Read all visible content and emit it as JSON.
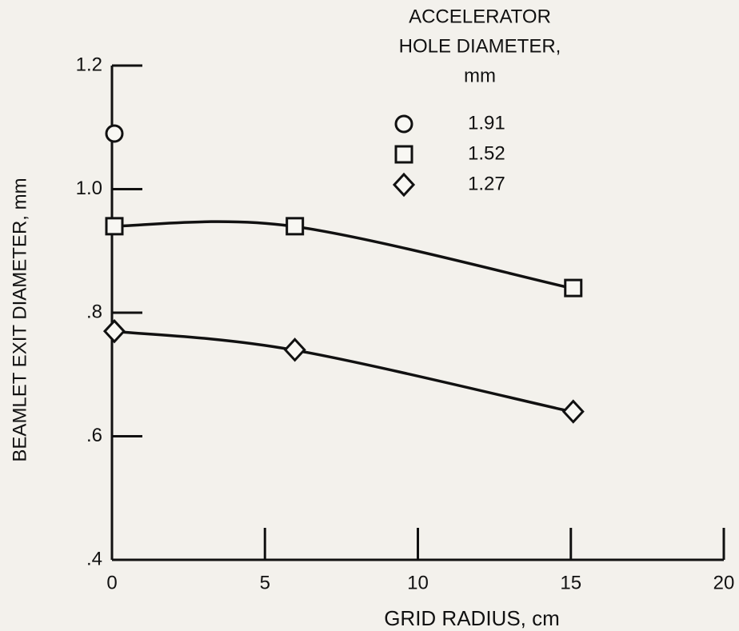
{
  "chart_data": {
    "type": "scatter",
    "x_label": "GRID RADIUS, cm",
    "y_label": "BEAMLET EXIT DIAMETER, mm",
    "legend_title": [
      "ACCELERATOR",
      "HOLE DIAMETER,",
      "mm"
    ],
    "xlim": [
      0,
      20
    ],
    "xticks": [
      0,
      5,
      10,
      15,
      20
    ],
    "ylim": [
      0.4,
      1.2
    ],
    "yticks": [
      {
        "value": 0.4,
        "label": ".4"
      },
      {
        "value": 0.6,
        "label": ".6"
      },
      {
        "value": 0.8,
        "label": ".8"
      },
      {
        "value": 1.0,
        "label": "1.0"
      },
      1.2
    ],
    "color": "#111111",
    "series": [
      {
        "name": "1.91",
        "marker": "circle",
        "x": [
          0
        ],
        "values": [
          1.09
        ]
      },
      {
        "name": "1.52",
        "marker": "square",
        "x": [
          0,
          5.9,
          15
        ],
        "values": [
          0.94,
          0.94,
          0.84
        ]
      },
      {
        "name": "1.27",
        "marker": "diamond",
        "x": [
          0,
          5.9,
          15
        ],
        "values": [
          0.77,
          0.74,
          0.64
        ]
      }
    ]
  }
}
